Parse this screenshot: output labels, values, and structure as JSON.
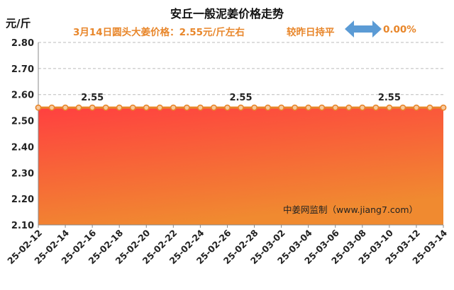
{
  "header": {
    "title": "安丘一般泥姜价格走势",
    "unit": "元/斤",
    "price_note": "3月14日圆头大姜价格：2.55元/斤左右",
    "compare_label": "较昨日持平",
    "change": "0.00%"
  },
  "watermark": "中姜网监制（www.jiang7.com）",
  "colors": {
    "line": "#e8862a",
    "area_top": "#ff4040",
    "area_bottom": "#f08a30",
    "arrow": "#5b9bd5",
    "text_accent": "#e8862a"
  },
  "chart_data": {
    "type": "area",
    "title": "安丘一般泥姜价格走势",
    "ylabel": "元/斤",
    "ylim": [
      2.1,
      2.8
    ],
    "yticks": [
      "2.10",
      "2.20",
      "2.30",
      "2.40",
      "2.50",
      "2.60",
      "2.70",
      "2.80"
    ],
    "x": [
      "25-02-12",
      "25-02-13",
      "25-02-14",
      "25-02-15",
      "25-02-16",
      "25-02-17",
      "25-02-18",
      "25-02-19",
      "25-02-20",
      "25-02-21",
      "25-02-22",
      "25-02-23",
      "25-02-24",
      "25-02-25",
      "25-02-26",
      "25-02-27",
      "25-02-28",
      "25-03-01",
      "25-03-02",
      "25-03-03",
      "25-03-04",
      "25-03-05",
      "25-03-06",
      "25-03-07",
      "25-03-08",
      "25-03-09",
      "25-03-10",
      "25-03-11",
      "25-03-12",
      "25-03-13",
      "25-03-14"
    ],
    "xtick_labels": [
      "25-02-12",
      "25-02-14",
      "25-02-16",
      "25-02-18",
      "25-02-20",
      "25-02-22",
      "25-02-24",
      "25-02-26",
      "25-02-28",
      "25-03-02",
      "25-03-04",
      "25-03-06",
      "25-03-08",
      "25-03-10",
      "25-03-12",
      "25-03-14"
    ],
    "series": [
      {
        "values": [
          2.55,
          2.55,
          2.55,
          2.55,
          2.55,
          2.55,
          2.55,
          2.55,
          2.55,
          2.55,
          2.55,
          2.55,
          2.55,
          2.55,
          2.55,
          2.55,
          2.55,
          2.55,
          2.55,
          2.55,
          2.55,
          2.55,
          2.55,
          2.55,
          2.55,
          2.55,
          2.55,
          2.55,
          2.55,
          2.55,
          2.55
        ]
      }
    ],
    "data_labels": [
      {
        "x": "25-02-16",
        "text": "2.55"
      },
      {
        "x": "25-02-27",
        "text": "2.55"
      },
      {
        "x": "25-03-10",
        "text": "2.55"
      }
    ],
    "grid": true
  }
}
